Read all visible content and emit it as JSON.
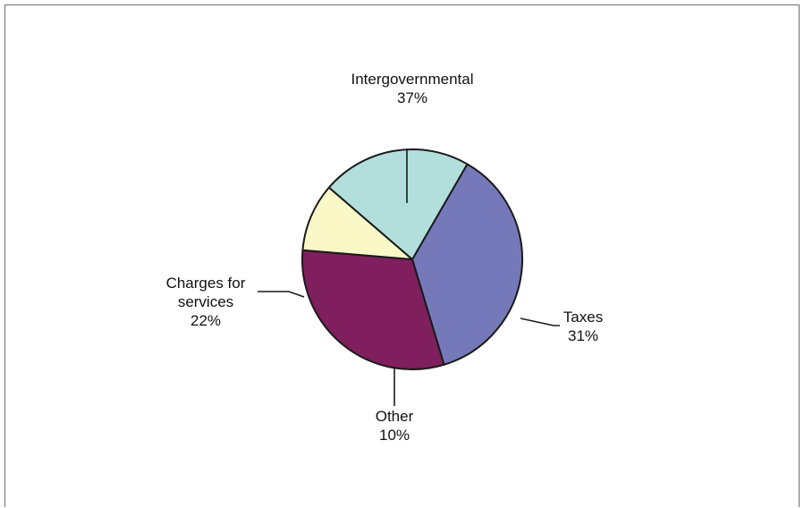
{
  "chart_data": {
    "type": "pie",
    "title": "",
    "slices": [
      {
        "name": "Intergovernmental",
        "value": 37,
        "value_label": "37%",
        "color": "#7579BA",
        "label_lines": [
          "Intergovernmental"
        ]
      },
      {
        "name": "Taxes",
        "value": 31,
        "value_label": "31%",
        "color": "#7F1F5D",
        "label_lines": [
          "Taxes"
        ]
      },
      {
        "name": "Other",
        "value": 10,
        "value_label": "10%",
        "color": "#FAF8C6",
        "label_lines": [
          "Other"
        ]
      },
      {
        "name": "Charges for services",
        "value": 22,
        "value_label": "22%",
        "color": "#B2DFDC",
        "label_lines": [
          "Charges for",
          "services"
        ]
      }
    ],
    "legend": "none",
    "label_style": "outside labels with leader lines"
  }
}
